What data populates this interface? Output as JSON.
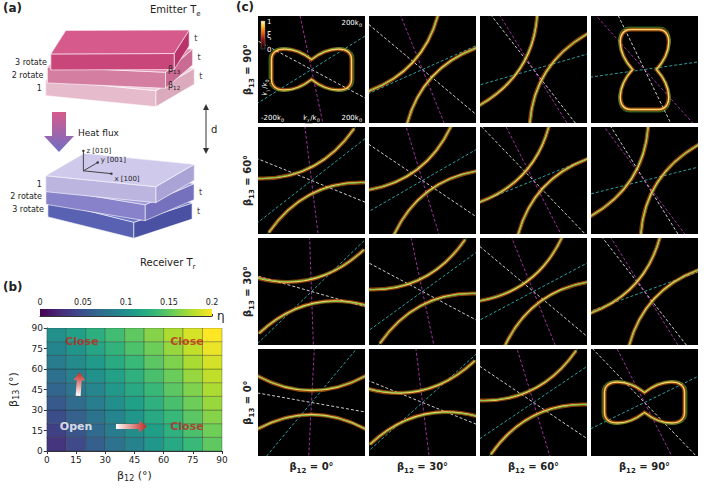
{
  "panel_labels": [
    "(a)",
    "(b)",
    "(c)"
  ],
  "diagram_a": {
    "emitter": {
      "name": "Emitter",
      "temperature": [
        {
          "t": "T"
        },
        {
          "s": "e"
        }
      ],
      "layers": [
        "3 rotate",
        "2 rotate",
        "1"
      ]
    },
    "angles": [
      [
        {
          "t": "β"
        },
        {
          "s": "13"
        }
      ],
      [
        {
          "t": "β"
        },
        {
          "s": "12"
        }
      ]
    ],
    "thickness": "t",
    "heat_flux": "Heat flux",
    "gap": "d",
    "receiver": {
      "name": "Receiver",
      "temperature": [
        {
          "t": "T"
        },
        {
          "s": "r"
        }
      ],
      "layers": [
        "1",
        "2 rotate",
        "3 rotate"
      ],
      "axes": [
        "z [010]",
        "y [001]",
        "x [100]"
      ]
    }
  },
  "chart_data": {
    "type": "heatmap",
    "x": [
      5,
      15,
      25,
      35,
      45,
      55,
      65,
      75,
      85
    ],
    "y": [
      5,
      15,
      25,
      35,
      45,
      55,
      65,
      75,
      85
    ],
    "values": [
      [
        0.03,
        0.045,
        0.06,
        0.075,
        0.09,
        0.105,
        0.12,
        0.135,
        0.15
      ],
      [
        0.039,
        0.053,
        0.068,
        0.083,
        0.098,
        0.112,
        0.127,
        0.142,
        0.156
      ],
      [
        0.048,
        0.062,
        0.076,
        0.091,
        0.105,
        0.12,
        0.134,
        0.148,
        0.163
      ],
      [
        0.056,
        0.07,
        0.085,
        0.099,
        0.113,
        0.127,
        0.141,
        0.155,
        0.169
      ],
      [
        0.065,
        0.079,
        0.093,
        0.106,
        0.12,
        0.134,
        0.148,
        0.161,
        0.175
      ],
      [
        0.074,
        0.087,
        0.101,
        0.114,
        0.127,
        0.141,
        0.154,
        0.168,
        0.181
      ],
      [
        0.083,
        0.096,
        0.109,
        0.122,
        0.135,
        0.148,
        0.161,
        0.174,
        0.187
      ],
      [
        0.091,
        0.104,
        0.117,
        0.13,
        0.143,
        0.155,
        0.168,
        0.181,
        0.194
      ],
      [
        0.1,
        0.113,
        0.125,
        0.138,
        0.15,
        0.163,
        0.175,
        0.188,
        0.2
      ]
    ],
    "xlim": [
      0,
      90
    ],
    "ylim": [
      0,
      90
    ],
    "xticks": [
      0,
      15,
      30,
      45,
      60,
      75,
      90
    ],
    "yticks": [
      0,
      15,
      30,
      45,
      60,
      75,
      90
    ],
    "xlabel": [
      {
        "t": "β"
      },
      {
        "s": "12"
      },
      {
        "t": " (°)"
      }
    ],
    "ylabel": [
      {
        "t": "β"
      },
      {
        "s": "13"
      },
      {
        "t": " (°)"
      }
    ],
    "colorbar": {
      "label": "η",
      "range": [
        0,
        0.2
      ],
      "ticks": [
        0,
        0.05,
        0.1,
        0.15,
        0.2
      ]
    },
    "grid": true,
    "annotations": [
      {
        "text": "Close",
        "x": 18,
        "y": 80,
        "color": "#c0281e"
      },
      {
        "text": "Close",
        "x": 72,
        "y": 80,
        "color": "#c0281e"
      },
      {
        "text": "Open",
        "x": 15,
        "y": 18,
        "color": "#ffffff"
      },
      {
        "text": "Close",
        "x": 72,
        "y": 18,
        "color": "#c0281e"
      }
    ]
  },
  "panel_c": {
    "row_labels": [
      [
        {
          "t": "β"
        },
        {
          "s": "13"
        },
        {
          "t": " = 90°"
        }
      ],
      [
        {
          "t": "β"
        },
        {
          "s": "13"
        },
        {
          "t": " = 60°"
        }
      ],
      [
        {
          "t": "β"
        },
        {
          "s": "13"
        },
        {
          "t": " = 30°"
        }
      ],
      [
        {
          "t": "β"
        },
        {
          "s": "13"
        },
        {
          "t": " = 0°"
        }
      ]
    ],
    "column_labels": [
      [
        {
          "t": "β"
        },
        {
          "s": "12"
        },
        {
          "t": " = 0°"
        }
      ],
      [
        {
          "t": "β"
        },
        {
          "s": "12"
        },
        {
          "t": " = 30°"
        }
      ],
      [
        {
          "t": "β"
        },
        {
          "s": "12"
        },
        {
          "t": " = 60°"
        }
      ],
      [
        {
          "t": "β"
        },
        {
          "s": "12"
        },
        {
          "t": " = 90°"
        }
      ]
    ],
    "x_axis_label": [
      {
        "t": "k"
      },
      {
        "s": "x"
      },
      {
        "t": "/k"
      },
      {
        "s": "0"
      }
    ],
    "y_axis_label": [
      {
        "t": "k"
      },
      {
        "s": "y"
      },
      {
        "t": "/k"
      },
      {
        "s": "0"
      }
    ],
    "xlim": [
      -200,
      200
    ],
    "ylim": [
      -200,
      200
    ],
    "xticks": [
      {
        "value": -200,
        "label": [
          {
            "t": "-200k"
          },
          {
            "s": "0"
          }
        ]
      },
      {
        "value": 200,
        "label": [
          {
            "t": "200k"
          },
          {
            "s": "0"
          }
        ]
      }
    ],
    "yticks": [
      {
        "value": 200,
        "label": [
          {
            "t": "200k"
          },
          {
            "s": "0"
          }
        ]
      }
    ],
    "colorbar": {
      "label": "ξ",
      "range": [
        0,
        1
      ],
      "ticks": [
        0,
        1
      ]
    }
  }
}
